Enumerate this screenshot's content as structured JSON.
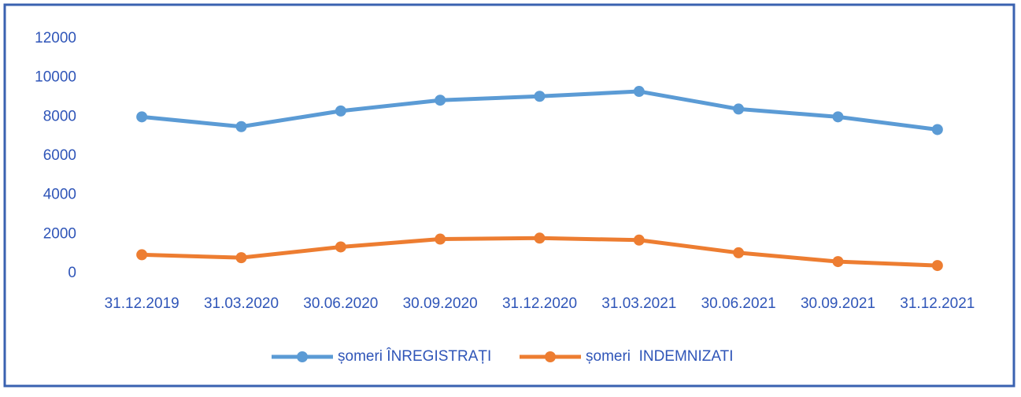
{
  "chart_data": {
    "type": "line",
    "categories": [
      "31.12.2019",
      "31.03.2020",
      "30.06.2020",
      "30.09.2020",
      "31.12.2020",
      "31.03.2021",
      "30.06.2021",
      "30.09.2021",
      "31.12.2021"
    ],
    "series": [
      {
        "name": "șomeri ÎNREGISTRAȚI",
        "color": "#5b9bd5",
        "values": [
          8000,
          7500,
          8300,
          8850,
          9050,
          9300,
          8400,
          8000,
          7350
        ]
      },
      {
        "name": "șomeri  INDEMNIZATI",
        "color": "#ed7d31",
        "values": [
          950,
          800,
          1350,
          1750,
          1800,
          1700,
          1050,
          600,
          400
        ]
      }
    ],
    "ylim": [
      0,
      12000
    ],
    "yticks": [
      0,
      2000,
      4000,
      6000,
      8000,
      10000,
      12000
    ],
    "grid": false,
    "legend": "bottom"
  }
}
